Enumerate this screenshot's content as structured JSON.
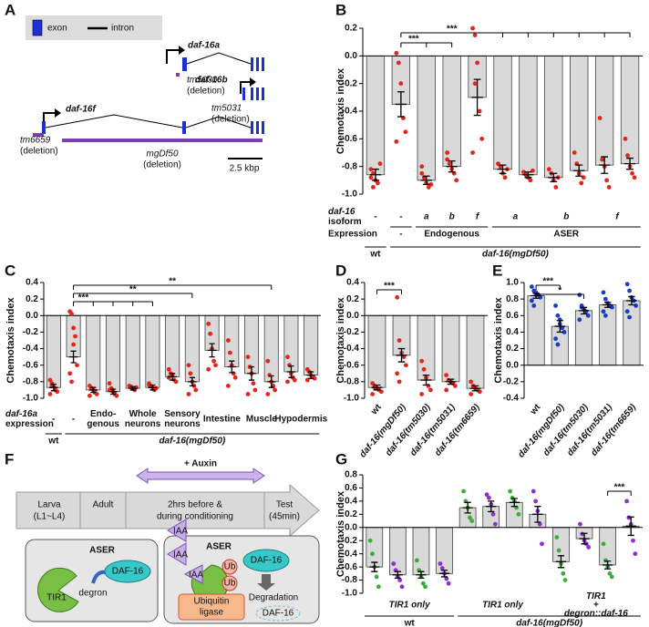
{
  "chart_data": [
    {
      "type": "bar",
      "panel": "B",
      "ylabel": "Chemotaxis index",
      "bar_color": "#d9d9d9",
      "point_color": "#e3261c",
      "ylim": [
        -1.0,
        0.2
      ],
      "yticks": [
        0.2,
        {
          "value": 0,
          "label": "0.0"
        },
        -0.2,
        -0.4,
        -0.6,
        -0.8,
        {
          "value": -1,
          "label": "-1.0"
        }
      ],
      "values": [
        -0.86,
        -0.35,
        -0.9,
        -0.8,
        -0.3,
        -0.82,
        -0.86,
        -0.88,
        -0.83,
        -0.79,
        -0.78
      ],
      "errors": [
        0.04,
        0.09,
        0.03,
        0.04,
        0.13,
        0.03,
        0.02,
        0.03,
        0.04,
        0.06,
        0.04
      ],
      "points": [
        [
          -0.82,
          -0.85,
          -0.9,
          -0.92,
          -0.78,
          -0.88,
          -0.95
        ],
        [
          0.02,
          -0.05,
          -0.2,
          -0.45,
          -0.55,
          -0.62
        ],
        [
          -0.85,
          -0.88,
          -0.92,
          -0.95,
          -0.93,
          -0.8
        ],
        [
          -0.7,
          -0.78,
          -0.82,
          -0.85,
          -0.9,
          -0.75
        ],
        [
          0.2,
          0.15,
          -0.05,
          -0.4,
          -0.6,
          -0.7,
          -0.2
        ],
        [
          -0.78,
          -0.8,
          -0.85,
          -0.88,
          -0.82
        ],
        [
          -0.84,
          -0.86,
          -0.88,
          -0.9,
          -0.83
        ],
        [
          -0.82,
          -0.85,
          -0.9,
          -0.95,
          -0.88
        ],
        [
          -0.7,
          -0.78,
          -0.85,
          -0.92,
          -0.88
        ],
        [
          -0.45,
          -0.75,
          -0.8,
          -0.9,
          -0.95
        ],
        [
          -0.6,
          -0.72,
          -0.8,
          -0.85,
          -0.88
        ]
      ],
      "significance": [
        {
          "text": "***",
          "from": 1,
          "targets": [
            2,
            3
          ]
        },
        {
          "text": "***",
          "from": 1,
          "targets": [
            5,
            6,
            7,
            8,
            9,
            10
          ]
        }
      ],
      "rows": [
        {
          "title": [
            "daf-16",
            "isoform"
          ],
          "title_italic": [
            true,
            false
          ],
          "groups": [
            {
              "label": [
                "-"
              ],
              "from": 0,
              "to": 0
            },
            {
              "label": [
                "-"
              ],
              "from": 1,
              "to": 1
            },
            {
              "label": [
                "a"
              ],
              "from": 2,
              "to": 2,
              "italic": true
            },
            {
              "label": [
                "b"
              ],
              "from": 3,
              "to": 3,
              "italic": true
            },
            {
              "label": [
                "f"
              ],
              "from": 4,
              "to": 4,
              "italic": true
            },
            {
              "label": [
                "a"
              ],
              "from": 5,
              "to": 6,
              "italic": true
            },
            {
              "label": [
                "b"
              ],
              "from": 7,
              "to": 8,
              "italic": true
            },
            {
              "label": [
                "f"
              ],
              "from": 9,
              "to": 10,
              "italic": true
            }
          ]
        },
        {
          "title": [
            "Expression"
          ],
          "groups": [
            {
              "label": [
                "-"
              ],
              "from": 1,
              "to": 1
            },
            {
              "label": [
                "Endogenous"
              ],
              "from": 2,
              "to": 4
            },
            {
              "label": [
                "ASER"
              ],
              "from": 5,
              "to": 10
            }
          ]
        },
        {
          "groups": [
            {
              "label": [
                "wt"
              ],
              "from": 0,
              "to": 0
            },
            {
              "label": [
                "daf-16(mgDf50)"
              ],
              "from": 1,
              "to": 10,
              "italic": true
            }
          ]
        }
      ]
    },
    {
      "type": "bar",
      "panel": "C",
      "ylabel": "Chemotaxis index",
      "bar_color": "#d9d9d9",
      "point_color": "#e3261c",
      "ylim": [
        -1.0,
        0.4
      ],
      "yticks": [
        0.4,
        0.2,
        {
          "value": 0,
          "label": "0.0"
        },
        -0.2,
        -0.4,
        -0.6,
        -0.8,
        {
          "value": -1,
          "label": "-1.0"
        }
      ],
      "values": [
        -0.87,
        -0.5,
        -0.9,
        -0.92,
        -0.88,
        -0.87,
        -0.74,
        -0.8,
        -0.42,
        -0.62,
        -0.7,
        -0.8,
        -0.68,
        -0.72
      ],
      "errors": [
        0.04,
        0.07,
        0.03,
        0.03,
        0.02,
        0.03,
        0.04,
        0.05,
        0.08,
        0.07,
        0.08,
        0.07,
        0.07,
        0.04
      ],
      "points": [
        [
          -0.78,
          -0.82,
          -0.86,
          -0.9,
          -0.92,
          -0.95,
          -0.84
        ],
        [
          0.05,
          0.02,
          -0.15,
          -0.25,
          -0.6,
          -0.7,
          -0.8,
          -0.35
        ],
        [
          -0.85,
          -0.88,
          -0.9,
          -0.93,
          -0.95,
          -0.97
        ],
        [
          -0.82,
          -0.88,
          -0.92,
          -0.95,
          -0.97,
          -0.9
        ],
        [
          -0.85,
          -0.86,
          -0.88,
          -0.9,
          -0.87
        ],
        [
          -0.82,
          -0.85,
          -0.87,
          -0.9,
          -0.88,
          -0.84
        ],
        [
          -0.65,
          -0.7,
          -0.72,
          -0.78,
          -0.8,
          -0.75
        ],
        [
          -0.6,
          -0.7,
          -0.8,
          -0.85,
          -0.9,
          -0.95
        ],
        [
          -0.1,
          -0.22,
          -0.4,
          -0.55,
          -0.6,
          -0.65
        ],
        [
          -0.3,
          -0.45,
          -0.6,
          -0.7,
          -0.75,
          -0.85
        ],
        [
          -0.5,
          -0.62,
          -0.7,
          -0.82,
          -0.9,
          -0.95
        ],
        [
          -0.55,
          -0.72,
          -0.8,
          -0.85,
          -0.9,
          -0.95
        ],
        [
          -0.5,
          -0.6,
          -0.7,
          -0.75,
          -0.78,
          -0.8
        ],
        [
          -0.65,
          -0.68,
          -0.72,
          -0.74,
          -0.76,
          -0.78
        ]
      ],
      "significance": [
        {
          "text": "***",
          "from": 1,
          "targets": [
            2,
            3,
            4,
            5
          ]
        },
        {
          "text": "**",
          "from": 1,
          "targets": [
            7
          ]
        },
        {
          "text": "**",
          "from": 1,
          "targets": [
            11
          ]
        }
      ],
      "rows": [
        {
          "title": [
            "daf-16a",
            "expression"
          ],
          "title_italic": [
            true,
            false
          ],
          "groups": [
            {
              "label": [
                "-"
              ],
              "from": 0,
              "to": 0
            },
            {
              "label": [
                "-"
              ],
              "from": 1,
              "to": 1
            },
            {
              "label": [
                "Endo-",
                "genous"
              ],
              "from": 2,
              "to": 3
            },
            {
              "label": [
                "Whole",
                "neurons"
              ],
              "from": 4,
              "to": 5
            },
            {
              "label": [
                "Sensory",
                "neurons"
              ],
              "from": 6,
              "to": 7
            },
            {
              "label": [
                "Intestine"
              ],
              "from": 8,
              "to": 9
            },
            {
              "label": [
                "Muscle"
              ],
              "from": 10,
              "to": 11
            },
            {
              "label": [
                "Hypodermis"
              ],
              "from": 12,
              "to": 13
            }
          ]
        },
        {
          "groups": [
            {
              "label": [
                "wt"
              ],
              "from": 0,
              "to": 0
            },
            {
              "label": [
                "daf-16(mgDf50)"
              ],
              "from": 1,
              "to": 13,
              "italic": true
            }
          ]
        }
      ]
    },
    {
      "type": "bar",
      "panel": "D",
      "ylabel": "Chemotaxis index",
      "bar_color": "#d9d9d9",
      "point_color": "#e3261c",
      "ylim": [
        -1.0,
        0.4
      ],
      "yticks": [
        0.4,
        0.2,
        {
          "value": 0,
          "label": "0.0"
        },
        -0.2,
        -0.4,
        -0.6,
        -0.8,
        {
          "value": -1,
          "label": "-1.0"
        }
      ],
      "categories": [
        "wt",
        "daf-16(mgDf50)",
        "daf-16(tm5030)",
        "daf-16(tm5031)",
        "daf-16(tm6659)"
      ],
      "categories_italic": [
        false,
        true,
        true,
        true,
        true
      ],
      "values": [
        -0.87,
        -0.48,
        -0.78,
        -0.8,
        -0.88
      ],
      "errors": [
        0.03,
        0.08,
        0.06,
        0.03,
        0.03
      ],
      "points": [
        [
          -0.82,
          -0.85,
          -0.88,
          -0.9,
          -0.92,
          -0.95,
          -0.87
        ],
        [
          0.22,
          -0.3,
          -0.45,
          -0.5,
          -0.6,
          -0.7,
          -0.8
        ],
        [
          -0.55,
          -0.65,
          -0.75,
          -0.85,
          -0.9,
          -0.95
        ],
        [
          -0.72,
          -0.78,
          -0.8,
          -0.82,
          -0.85,
          -0.9
        ],
        [
          -0.8,
          -0.85,
          -0.88,
          -0.9,
          -0.92,
          -0.95
        ]
      ],
      "significance": [
        {
          "text": "***",
          "from": 0,
          "targets": [
            1
          ]
        }
      ]
    },
    {
      "type": "bar",
      "panel": "E",
      "ylabel": "Chemotaxis index",
      "bar_color": "#d9d9d9",
      "point_color": "#1c3cc8",
      "ylim": [
        -0.4,
        1.0
      ],
      "yticks": [
        {
          "value": 1,
          "label": "1.0"
        },
        0.8,
        0.6,
        0.4,
        0.2,
        {
          "value": 0,
          "label": "0.0"
        },
        -0.2,
        -0.4
      ],
      "categories": [
        "wt",
        "daf-16(mgDf50)",
        "daf-16(tm5030)",
        "daf-16(tm5031)",
        "daf-16(tm6659)"
      ],
      "categories_italic": [
        false,
        true,
        true,
        true,
        true
      ],
      "values": [
        0.84,
        0.47,
        0.66,
        0.73,
        0.78
      ],
      "errors": [
        0.03,
        0.07,
        0.04,
        0.03,
        0.05
      ],
      "points": [
        [
          0.95,
          0.9,
          0.88,
          0.85,
          0.82,
          0.78,
          0.72,
          0.85
        ],
        [
          0.72,
          0.6,
          0.5,
          0.45,
          0.4,
          0.32,
          0.25,
          0.55
        ],
        [
          0.85,
          0.72,
          0.68,
          0.65,
          0.6,
          0.55,
          0.7
        ],
        [
          0.88,
          0.8,
          0.75,
          0.72,
          0.7,
          0.65,
          0.6
        ],
        [
          0.98,
          0.9,
          0.82,
          0.78,
          0.72,
          0.65,
          0.58
        ]
      ],
      "significance": [
        {
          "text": "***",
          "from": 0,
          "targets": [
            1
          ]
        },
        {
          "text": "*",
          "from": 0,
          "targets": [
            2
          ]
        }
      ]
    },
    {
      "type": "bar",
      "panel": "G",
      "ylabel": "Chemotaxis index",
      "bar_color": "#d9d9d9",
      "point_colors": [
        "#3aae3a",
        "#8e2fd0",
        "#3aae3a",
        "#8e2fd0",
        "#3aae3a",
        "#8e2fd0",
        "#3aae3a",
        "#8e2fd0",
        "#3aae3a",
        "#8e2fd0",
        "#3aae3a",
        "#8e2fd0"
      ],
      "ylim": [
        -1.0,
        0.8
      ],
      "yticks": [
        0.8,
        0.6,
        0.4,
        0.2,
        {
          "value": 0,
          "label": "0.0"
        },
        -0.2,
        -0.4,
        -0.6,
        -0.8,
        {
          "value": -1,
          "label": "-1.0"
        }
      ],
      "values": [
        -0.6,
        -0.72,
        -0.72,
        -0.7,
        0.3,
        0.32,
        0.38,
        0.2,
        -0.52,
        -0.17,
        -0.57,
        0.02
      ],
      "errors": [
        0.07,
        0.05,
        0.05,
        0.05,
        0.08,
        0.08,
        0.06,
        0.12,
        0.09,
        0.08,
        0.06,
        0.14
      ],
      "points": [
        [
          -0.2,
          -0.4,
          -0.6,
          -0.75,
          -0.9
        ],
        [
          -0.55,
          -0.65,
          -0.75,
          -0.8,
          -0.9
        ],
        [
          -0.5,
          -0.65,
          -0.75,
          -0.85,
          -0.9
        ],
        [
          -0.55,
          -0.62,
          -0.7,
          -0.78,
          -0.85
        ],
        [
          0.55,
          0.4,
          0.3,
          0.15,
          0.1
        ],
        [
          0.5,
          0.45,
          0.35,
          0.2,
          0.05
        ],
        [
          0.55,
          0.45,
          0.4,
          0.3,
          0.2
        ],
        [
          0.55,
          0.4,
          0.25,
          0.05,
          -0.25
        ],
        [
          -0.15,
          -0.35,
          -0.55,
          -0.7,
          -0.8
        ],
        [
          0.05,
          -0.1,
          -0.2,
          -0.25,
          -0.3
        ],
        [
          -0.25,
          -0.5,
          -0.6,
          -0.7,
          -0.75
        ],
        [
          0.4,
          0.15,
          0.05,
          -0.2,
          -0.4
        ]
      ],
      "significance": [
        {
          "text": "***",
          "from": 10,
          "targets": [
            11
          ]
        }
      ],
      "rows": [
        {
          "groups": [
            {
              "label": [
                "TIR1 only"
              ],
              "from": 0,
              "to": 3,
              "italic": true
            },
            {
              "label": [
                "TIR1 only"
              ],
              "from": 4,
              "to": 7,
              "italic": true
            },
            {
              "label": [
                "TIR1",
                "+",
                "degron::daf-16"
              ],
              "from": 8,
              "to": 11,
              "italic": true
            }
          ]
        },
        {
          "groups": [
            {
              "label": [
                "wt"
              ],
              "from": 0,
              "to": 3
            },
            {
              "label": [
                "daf-16(mgDf50)"
              ],
              "from": 4,
              "to": 11,
              "italic": true
            }
          ]
        }
      ]
    }
  ],
  "diagram_A": {
    "panel": "A",
    "legend": [
      "exon",
      "intron"
    ],
    "isoforms": [
      "daf-16a",
      "daf-16b",
      "daf-16f"
    ],
    "alleles": [
      {
        "name": "tm5030",
        "note": "(deletion)"
      },
      {
        "name": "tm5031",
        "note": "(deletion)"
      },
      {
        "name": "tm6659",
        "note": "(deletion)"
      },
      {
        "name": "mgDf50",
        "note": "(deletion)"
      }
    ],
    "scale": "2.5 kbp"
  },
  "diagram_F": {
    "panel": "F",
    "auxin": "+ Auxin",
    "stages": [
      [
        "Larva",
        "(L1~L4)"
      ],
      [
        "Adult"
      ],
      [
        "2hrs before &",
        "during conditioning"
      ],
      [
        "Test",
        "(45min)"
      ]
    ],
    "left_cell": {
      "title": "ASER",
      "tir1": "TIR1",
      "degron": "degron",
      "daf16": "DAF-16"
    },
    "right_cell": {
      "title": "ASER",
      "iaa": [
        "IAA",
        "IAA",
        "IAA"
      ],
      "ub": [
        "Ub",
        "Ub"
      ],
      "daf16": "DAF-16",
      "degradation": "Degradation",
      "ligase": [
        "Ubiquitin",
        "ligase"
      ],
      "degraded": "DAF-16"
    }
  }
}
